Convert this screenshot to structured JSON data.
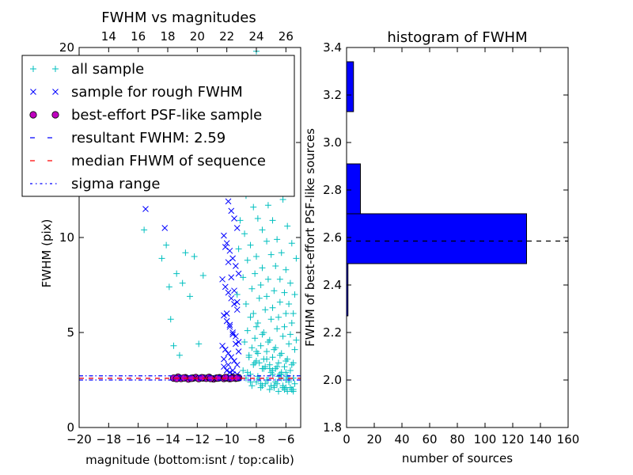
{
  "chart_data": [
    {
      "type": "scatter",
      "title": "FWHM vs magnitudes",
      "xlabel": "magnitude (bottom:isnt / top:calib)",
      "ylabel": "FWHM (pix)",
      "xlim": [
        -20,
        -5
      ],
      "ylim": [
        0,
        20
      ],
      "xticks": [
        "−20",
        "−18",
        "−16",
        "−14",
        "−12",
        "−10",
        "−8",
        "−6"
      ],
      "xtick_values": [
        -20,
        -18,
        -16,
        -14,
        -12,
        -10,
        -8,
        -6
      ],
      "yticks": [
        "0",
        "5",
        "10",
        "15",
        "20"
      ],
      "ytick_values": [
        0,
        5,
        10,
        15,
        20
      ],
      "top_xticks": [
        "14",
        "16",
        "18",
        "20",
        "22",
        "24",
        "26"
      ],
      "top_xtick_values": [
        14,
        16,
        18,
        20,
        22,
        24,
        26
      ],
      "top_xlim": [
        12.0,
        27.0
      ],
      "legend_placement": "upper-left",
      "grid": false,
      "legend": [
        {
          "label": "all sample",
          "marker": "+",
          "color": "#00bfbf"
        },
        {
          "label": "sample for rough FWHM",
          "marker": "x",
          "color": "#0000ff"
        },
        {
          "label": "best-effort PSF-like sample",
          "marker": "o",
          "color": "#bf00bf"
        },
        {
          "label": "resultant FWHM: 2.59",
          "linestyle": "dashed",
          "color": "#0000ff"
        },
        {
          "label": "median FHWM of sequence",
          "linestyle": "dashed",
          "color": "#ff0000"
        },
        {
          "label": "sigma range",
          "linestyle": "dashdot",
          "color": "#0000ff"
        }
      ],
      "series": [
        {
          "name": "all sample",
          "x": [
            -15.6,
            -14.4,
            -14.1,
            -13.9,
            -13.8,
            -13.6,
            -13.4,
            -13.2,
            -13.0,
            -12.8,
            -12.5,
            -12.2,
            -11.9,
            -11.6,
            -11.2,
            -10.8,
            -10.4,
            -10.0,
            -9.7,
            -9.4,
            -9.0,
            -8.6,
            -8.3,
            -8.0,
            -7.7,
            -7.4,
            -7.1,
            -6.8,
            -6.5,
            -6.2,
            -5.9,
            -5.6,
            -5.3,
            -8.9,
            -8.5,
            -8.1,
            -7.8,
            -7.5,
            -7.2,
            -6.9,
            -6.6,
            -6.3,
            -6.0,
            -5.7,
            -5.4,
            -8.7,
            -8.2,
            -7.9,
            -7.6,
            -7.3,
            -7.0,
            -6.7,
            -6.4,
            -6.1,
            -5.8,
            -5.5,
            -9.1,
            -8.8,
            -8.4,
            -8.0,
            -7.6,
            -7.2,
            -6.8,
            -6.4,
            -6.0,
            -5.6,
            -9.2,
            -8.6,
            -8.1,
            -7.7,
            -7.3,
            -6.9,
            -6.5,
            -6.1,
            -5.7,
            -5.3,
            -8.9,
            -8.3,
            -7.8,
            -7.4,
            -7.0,
            -6.6,
            -6.2,
            -5.8,
            -5.4,
            -9.3,
            -8.7,
            -8.2,
            -7.9,
            -7.5,
            -7.1,
            -6.7,
            -6.3,
            -5.9,
            -5.5,
            -8.4,
            -8.0,
            -7.6,
            -7.2,
            -6.8,
            -6.4,
            -6.0,
            -5.6,
            -8.6,
            -8.1,
            -7.7,
            -7.3,
            -6.9,
            -6.5,
            -6.1,
            -5.7,
            -8.8,
            -8.3,
            -7.9,
            -7.5,
            -7.1,
            -6.7,
            -6.3,
            -5.9,
            -5.5,
            -8.5,
            -8.0,
            -7.4,
            -6.9,
            -6.3,
            -5.8,
            -8.2,
            -7.6,
            -7.0,
            -6.5,
            -6.0,
            -5.4,
            -8.9,
            -8.4,
            -7.8,
            -7.3,
            -6.7,
            -6.2,
            -5.7,
            -8.7,
            -8.0,
            -7.4,
            -6.8,
            -6.2,
            -5.6,
            -8.3,
            -7.7,
            -7.1,
            -6.5,
            -5.9,
            -8.6,
            -7.9,
            -7.2,
            -6.6,
            -6.0,
            -5.5,
            -8.1,
            -7.5,
            -6.9,
            -6.3,
            -5.8,
            -8.5,
            -7.8,
            -7.1,
            -6.4,
            -5.8,
            -8.0,
            -7.3,
            -6.6,
            -6.0,
            -8.4,
            -7.6,
            -6.8,
            -6.1,
            -5.5,
            -7.7,
            -7.0,
            -6.2,
            -5.6
          ],
          "y": [
            10.4,
            8.9,
            9.6,
            7.4,
            5.7,
            4.3,
            8.1,
            3.8,
            7.6,
            9.2,
            6.9,
            9.0,
            4.4,
            8.0,
            12.9,
            13.3,
            16.6,
            18.1,
            16.3,
            18.7,
            17.7,
            15.1,
            19.3,
            19.8,
            16.0,
            17.4,
            15.0,
            14.3,
            13.2,
            12.0,
            10.6,
            9.7,
            8.9,
            13.8,
            14.8,
            12.7,
            13.2,
            12.5,
            11.7,
            10.9,
            9.9,
            9.2,
            8.3,
            7.6,
            7.0,
            12.2,
            11.6,
            11.0,
            10.4,
            9.8,
            9.1,
            8.5,
            7.8,
            7.1,
            6.5,
            6.0,
            10.9,
            10.2,
            9.6,
            9.0,
            8.4,
            7.8,
            7.2,
            6.6,
            6.0,
            5.5,
            9.4,
            8.8,
            8.1,
            7.5,
            6.9,
            6.3,
            5.8,
            5.3,
            4.9,
            4.6,
            7.9,
            7.3,
            6.8,
            6.2,
            5.7,
            5.2,
            4.8,
            4.4,
            4.1,
            7.0,
            6.5,
            6.0,
            5.5,
            5.0,
            4.6,
            4.2,
            3.9,
            3.6,
            3.4,
            5.8,
            5.3,
            4.9,
            4.5,
            4.1,
            3.8,
            3.5,
            3.3,
            5.1,
            4.7,
            4.3,
            4.0,
            3.7,
            3.4,
            3.2,
            3.0,
            4.5,
            4.2,
            3.9,
            3.6,
            3.3,
            3.1,
            2.9,
            2.7,
            2.6,
            3.8,
            3.5,
            3.2,
            3.0,
            2.8,
            2.6,
            3.3,
            3.1,
            2.9,
            2.7,
            2.5,
            2.3,
            3.0,
            2.8,
            2.6,
            2.5,
            2.4,
            2.2,
            2.1,
            2.6,
            2.4,
            2.3,
            2.2,
            2.1,
            2.0,
            2.2,
            2.1,
            2.0,
            1.9,
            1.9,
            2.9,
            2.7,
            2.5,
            2.3,
            2.1,
            2.0,
            3.4,
            3.1,
            2.8,
            2.6,
            2.4,
            3.7,
            3.4,
            3.1,
            2.8,
            2.5,
            4.0,
            3.6,
            3.2,
            2.9,
            2.4,
            2.2,
            2.1,
            2.0,
            1.9,
            2.3,
            2.2,
            2.1,
            2.0
          ]
        },
        {
          "name": "sample for rough FWHM",
          "x": [
            -15.5,
            -14.2,
            -10.3,
            -10.1,
            -9.9,
            -9.7,
            -9.5,
            -9.3,
            -10.2,
            -10.0,
            -9.8,
            -9.6,
            -9.4,
            -9.2,
            -10.3,
            -10.1,
            -9.9,
            -9.7,
            -9.5,
            -9.3,
            -10.2,
            -10.0,
            -9.8,
            -9.6,
            -9.4,
            -9.2,
            -10.3,
            -10.1,
            -9.9,
            -9.7,
            -9.5,
            -9.3,
            -10.2,
            -10.0,
            -9.8,
            -9.6,
            -9.4,
            -9.2,
            -10.1,
            -9.9,
            -9.7,
            -9.5,
            -9.3,
            -10.0,
            -9.8,
            -9.6,
            -9.4,
            -9.2,
            -10.2,
            -9.9,
            -9.6,
            -9.3
          ],
          "y": [
            11.5,
            10.5,
            12.9,
            12.4,
            11.9,
            11.4,
            11.0,
            10.5,
            10.1,
            9.7,
            9.3,
            8.9,
            8.5,
            8.1,
            7.8,
            7.4,
            7.1,
            6.8,
            6.5,
            6.2,
            5.9,
            5.6,
            5.3,
            5.0,
            4.8,
            4.5,
            4.3,
            4.1,
            3.9,
            3.7,
            3.5,
            3.3,
            3.2,
            3.0,
            2.9,
            2.8,
            2.7,
            2.6,
            9.5,
            8.7,
            7.9,
            7.2,
            6.6,
            6.0,
            5.4,
            4.9,
            4.4,
            4.0,
            3.6,
            3.3,
            3.0,
            2.8
          ]
        },
        {
          "name": "best-effort PSF-like sample",
          "x": [
            -13.6,
            -13.3,
            -13.1,
            -12.8,
            -12.6,
            -12.3,
            -12.1,
            -11.9,
            -11.6,
            -11.4,
            -11.2,
            -10.9,
            -10.7,
            -10.5,
            -10.2,
            -10.0,
            -9.8,
            -9.6,
            -9.4,
            -9.2,
            -13.4,
            -12.9,
            -12.4,
            -11.7,
            -11.1,
            -10.6,
            -10.1,
            -9.7,
            -9.3
          ],
          "y": [
            2.6,
            2.65,
            2.58,
            2.62,
            2.55,
            2.6,
            2.63,
            2.57,
            2.61,
            2.59,
            2.64,
            2.56,
            2.6,
            2.62,
            2.58,
            2.61,
            2.57,
            2.63,
            2.59,
            2.62,
            2.57,
            2.61,
            2.59,
            2.62,
            2.58,
            2.6,
            2.63,
            2.59,
            2.61
          ]
        }
      ],
      "hlines": [
        {
          "name": "resultant FWHM: 2.59",
          "y": 2.59,
          "style": "dashed",
          "color": "#0000ff"
        },
        {
          "name": "median FHWM of sequence",
          "y": 2.59,
          "style": "dashed",
          "color": "#ff0000"
        },
        {
          "name": "sigma range",
          "y": 2.5,
          "style": "dashdot",
          "color": "#0000ff"
        },
        {
          "name": "sigma range",
          "y": 2.72,
          "style": "dashdot",
          "color": "#0000ff"
        }
      ]
    },
    {
      "type": "bar",
      "orientation": "horizontal",
      "title": "histogram of FWHM",
      "xlabel": "number of sources",
      "ylabel": "FWHM of best-effort PSF-like sources",
      "xlim": [
        0,
        160
      ],
      "ylim": [
        1.8,
        3.4
      ],
      "xticks": [
        "0",
        "20",
        "40",
        "60",
        "80",
        "100",
        "120",
        "140",
        "160"
      ],
      "xtick_values": [
        0,
        20,
        40,
        60,
        80,
        100,
        120,
        140,
        160
      ],
      "yticks": [
        "1.8",
        "2.0",
        "2.2",
        "2.4",
        "2.6",
        "2.8",
        "3.0",
        "3.2",
        "3.4"
      ],
      "ytick_values": [
        1.8,
        2.0,
        2.2,
        2.4,
        2.6,
        2.8,
        3.0,
        3.2,
        3.4
      ],
      "color": "#0000ff",
      "bins": [
        {
          "y0": 2.27,
          "y1": 2.49,
          "count": 1
        },
        {
          "y0": 2.49,
          "y1": 2.7,
          "count": 130
        },
        {
          "y0": 2.7,
          "y1": 2.91,
          "count": 10
        },
        {
          "y0": 2.91,
          "y1": 3.13,
          "count": 0
        },
        {
          "y0": 3.13,
          "y1": 3.34,
          "count": 5
        }
      ],
      "hline": {
        "y": 2.585,
        "style": "dashed",
        "color": "#000000"
      }
    }
  ]
}
